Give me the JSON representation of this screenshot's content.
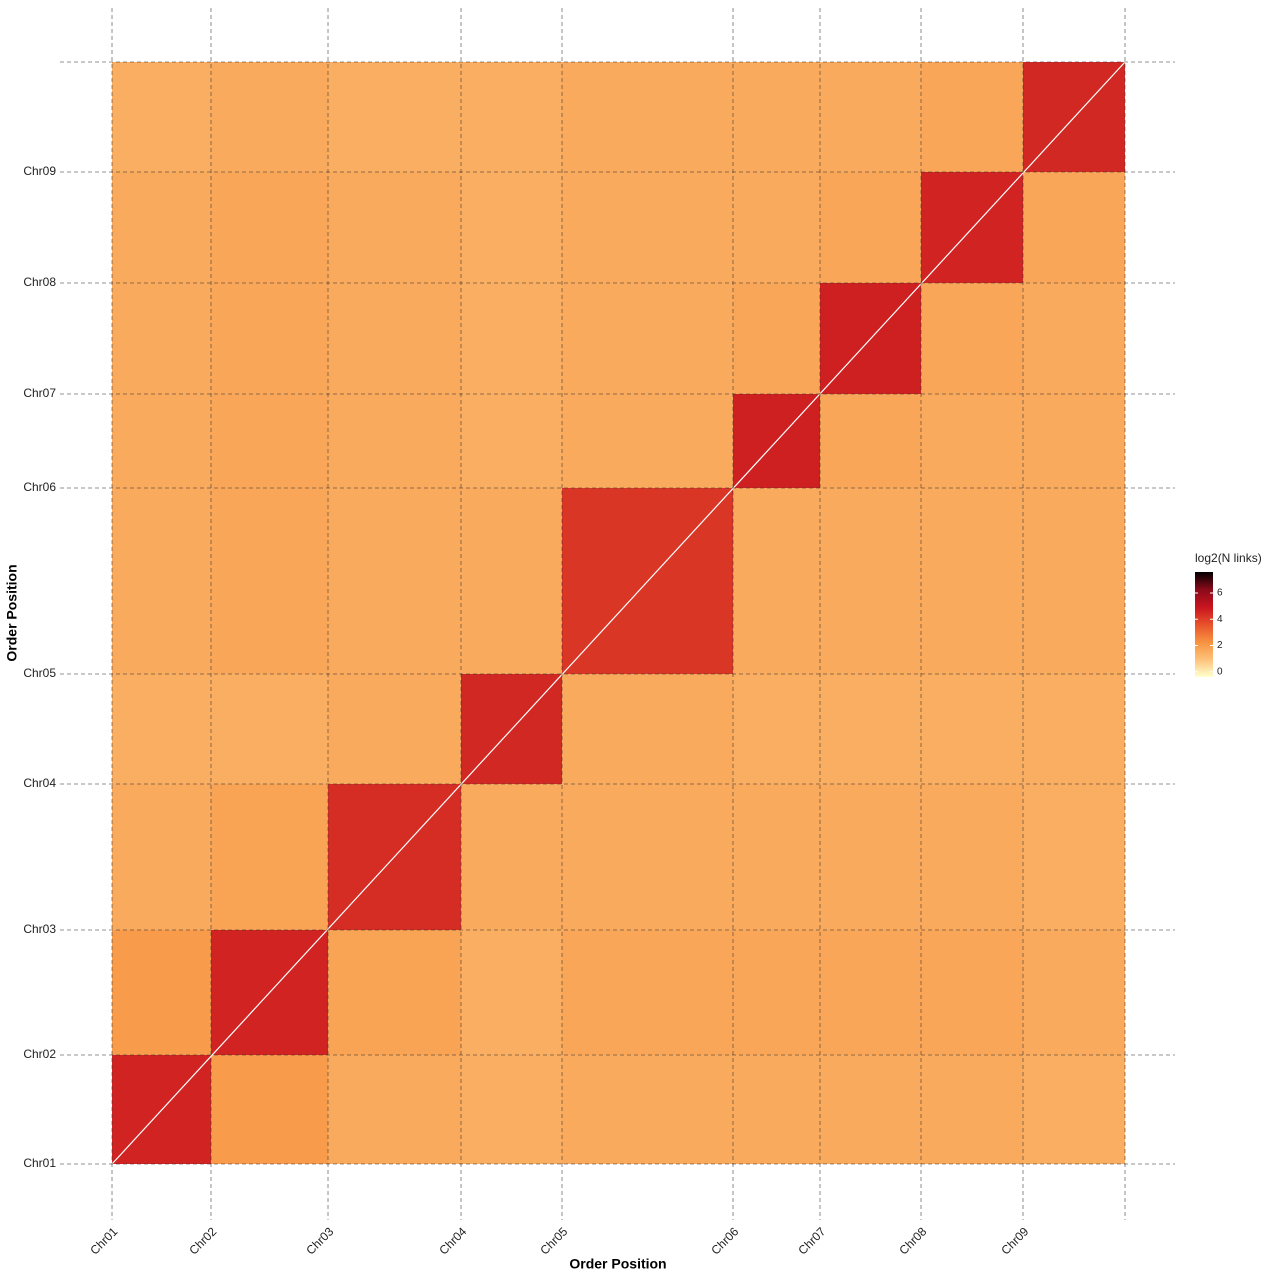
{
  "chart_data": {
    "type": "heatmap",
    "x_label": "Order Position",
    "y_label": "Order Position",
    "legend_title": "log2(N links)",
    "xlim": [
      0,
      1013
    ],
    "ylim": [
      0,
      1102
    ],
    "xticks": [
      {
        "value": 0,
        "label": "Chr01"
      },
      {
        "value": 99,
        "label": "Chr02"
      },
      {
        "value": 216,
        "label": "Chr03"
      },
      {
        "value": 349,
        "label": "Chr04"
      },
      {
        "value": 450,
        "label": "Chr05"
      },
      {
        "value": 621,
        "label": "Chr06"
      },
      {
        "value": 708,
        "label": "Chr07"
      },
      {
        "value": 809,
        "label": "Chr08"
      },
      {
        "value": 911,
        "label": "Chr09"
      }
    ],
    "yticks": [
      {
        "value": 0,
        "label": "Chr01"
      },
      {
        "value": 109,
        "label": "Chr02"
      },
      {
        "value": 234,
        "label": "Chr03"
      },
      {
        "value": 380,
        "label": "Chr04"
      },
      {
        "value": 490,
        "label": "Chr05"
      },
      {
        "value": 676,
        "label": "Chr06"
      },
      {
        "value": 770,
        "label": "Chr07"
      },
      {
        "value": 881,
        "label": "Chr08"
      },
      {
        "value": 992,
        "label": "Chr09"
      }
    ],
    "values": [
      [
        4.6,
        2.0,
        1.6,
        1.5,
        1.6,
        1.6,
        1.6,
        1.6,
        1.5
      ],
      [
        2.0,
        4.6,
        1.8,
        1.5,
        1.7,
        1.7,
        1.7,
        1.7,
        1.6
      ],
      [
        1.6,
        1.8,
        4.4,
        1.6,
        1.6,
        1.6,
        1.6,
        1.6,
        1.5
      ],
      [
        1.5,
        1.5,
        1.6,
        4.5,
        1.6,
        1.5,
        1.5,
        1.5,
        1.5
      ],
      [
        1.6,
        1.7,
        1.6,
        1.6,
        4.2,
        1.6,
        1.6,
        1.6,
        1.6
      ],
      [
        1.6,
        1.7,
        1.6,
        1.5,
        1.6,
        4.7,
        1.7,
        1.6,
        1.6
      ],
      [
        1.6,
        1.7,
        1.6,
        1.5,
        1.6,
        1.7,
        4.7,
        1.7,
        1.6
      ],
      [
        1.6,
        1.7,
        1.6,
        1.5,
        1.6,
        1.6,
        1.7,
        4.6,
        1.7
      ],
      [
        1.5,
        1.6,
        1.5,
        1.5,
        1.6,
        1.6,
        1.6,
        1.7,
        4.5
      ]
    ],
    "colormap": [
      "#ffffcc",
      "#fdc27a",
      "#f7923f",
      "#e8512b",
      "#c8141f",
      "#8a0a1a",
      "#000000"
    ],
    "clim": [
      -0.4,
      7.6
    ],
    "legend_ticks": [
      0,
      2,
      4,
      6
    ],
    "grid": true
  }
}
